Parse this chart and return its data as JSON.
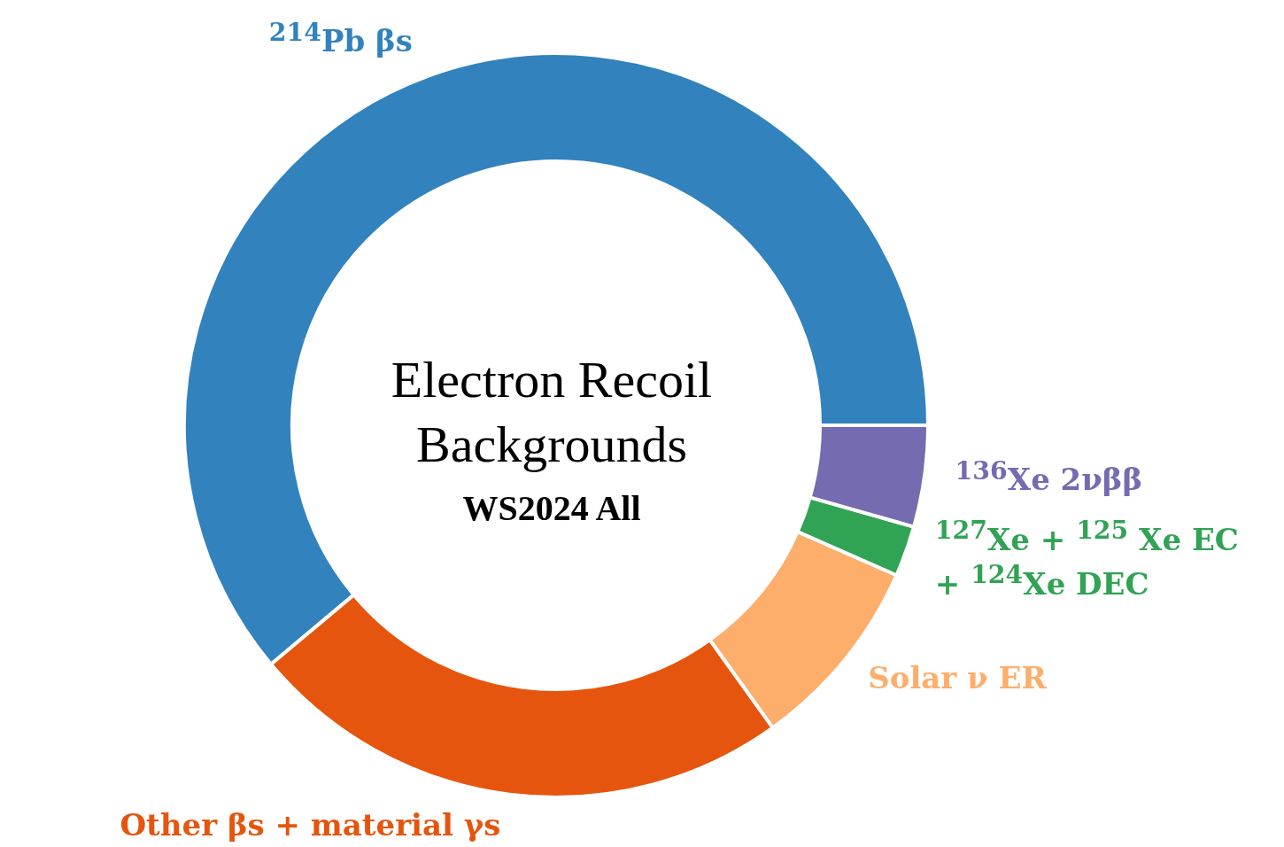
{
  "chart_data": {
    "type": "donut",
    "title": "Electron Recoil Backgrounds",
    "subtitle": "WS2024 All",
    "categories": [
      "$^{214}$Pb βs",
      "Other βs + material γs",
      "Solar ν ER",
      "$^{127}$Xe + $^{125}$ Xe EC + $^{124}$Xe DEC",
      "$^{136}$Xe 2νββ"
    ],
    "values": [
      61.1,
      23.8,
      8.5,
      2.2,
      4.4
    ],
    "colors": [
      "#3282bd",
      "#e6550d",
      "#fdae6b",
      "#31a354",
      "#756bb1"
    ],
    "legend": false
  }
}
